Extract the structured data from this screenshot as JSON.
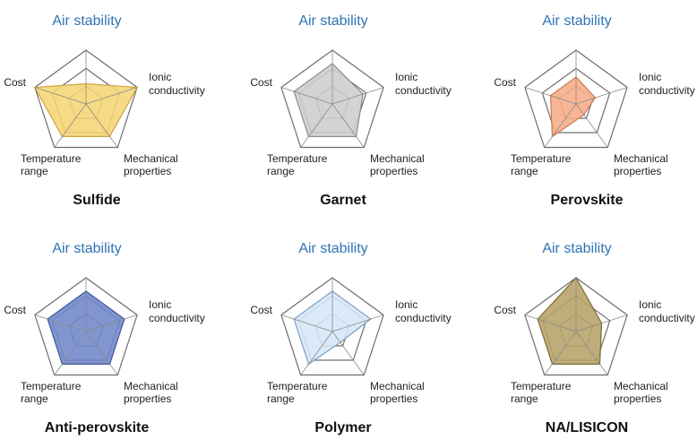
{
  "axes": [
    "Air stability",
    "Ionic conductivity",
    "Mechanical properties",
    "Temperature range",
    "Cost"
  ],
  "axis_labels": {
    "air": "Air stability",
    "ionic": [
      "Ionic",
      "conductivity"
    ],
    "mech": [
      "Mechanical",
      "properties"
    ],
    "temp": [
      "Temperature",
      "range"
    ],
    "cost": "Cost"
  },
  "chart_data": [
    {
      "type": "radar",
      "title": "Sulfide",
      "color": "#f6d574",
      "stroke": "#c9a640",
      "values": [
        1.5,
        4.0,
        3.0,
        3.0,
        4.0
      ],
      "rmax": 4
    },
    {
      "type": "radar",
      "title": "Garnet",
      "color": "#cdcdcd",
      "stroke": "#8d8d8d",
      "values": [
        3.0,
        2.4,
        3.0,
        3.0,
        3.0
      ],
      "rmax": 4
    },
    {
      "type": "radar",
      "title": "Perovskite",
      "color": "#f7ac85",
      "stroke": "#c97a55",
      "values": [
        2.0,
        1.5,
        1.0,
        3.0,
        2.0
      ],
      "rmax": 4
    },
    {
      "type": "radar",
      "title": "Anti-perovskite",
      "color": "#6f86c8",
      "stroke": "#3e5599",
      "values": [
        3.0,
        3.0,
        3.0,
        3.0,
        3.0
      ],
      "rmax": 4
    },
    {
      "type": "radar",
      "title": "Polymer",
      "color": "#d6e6f7",
      "stroke": "#7f9fc4",
      "values": [
        3.0,
        3.0,
        1.0,
        3.0,
        3.0
      ],
      "rmax": 4
    },
    {
      "type": "radar",
      "title": "NA/LISICON",
      "color": "#b6a268",
      "stroke": "#7b6a35",
      "values": [
        4.0,
        2.0,
        3.0,
        3.0,
        3.0
      ],
      "rmax": 4
    }
  ]
}
